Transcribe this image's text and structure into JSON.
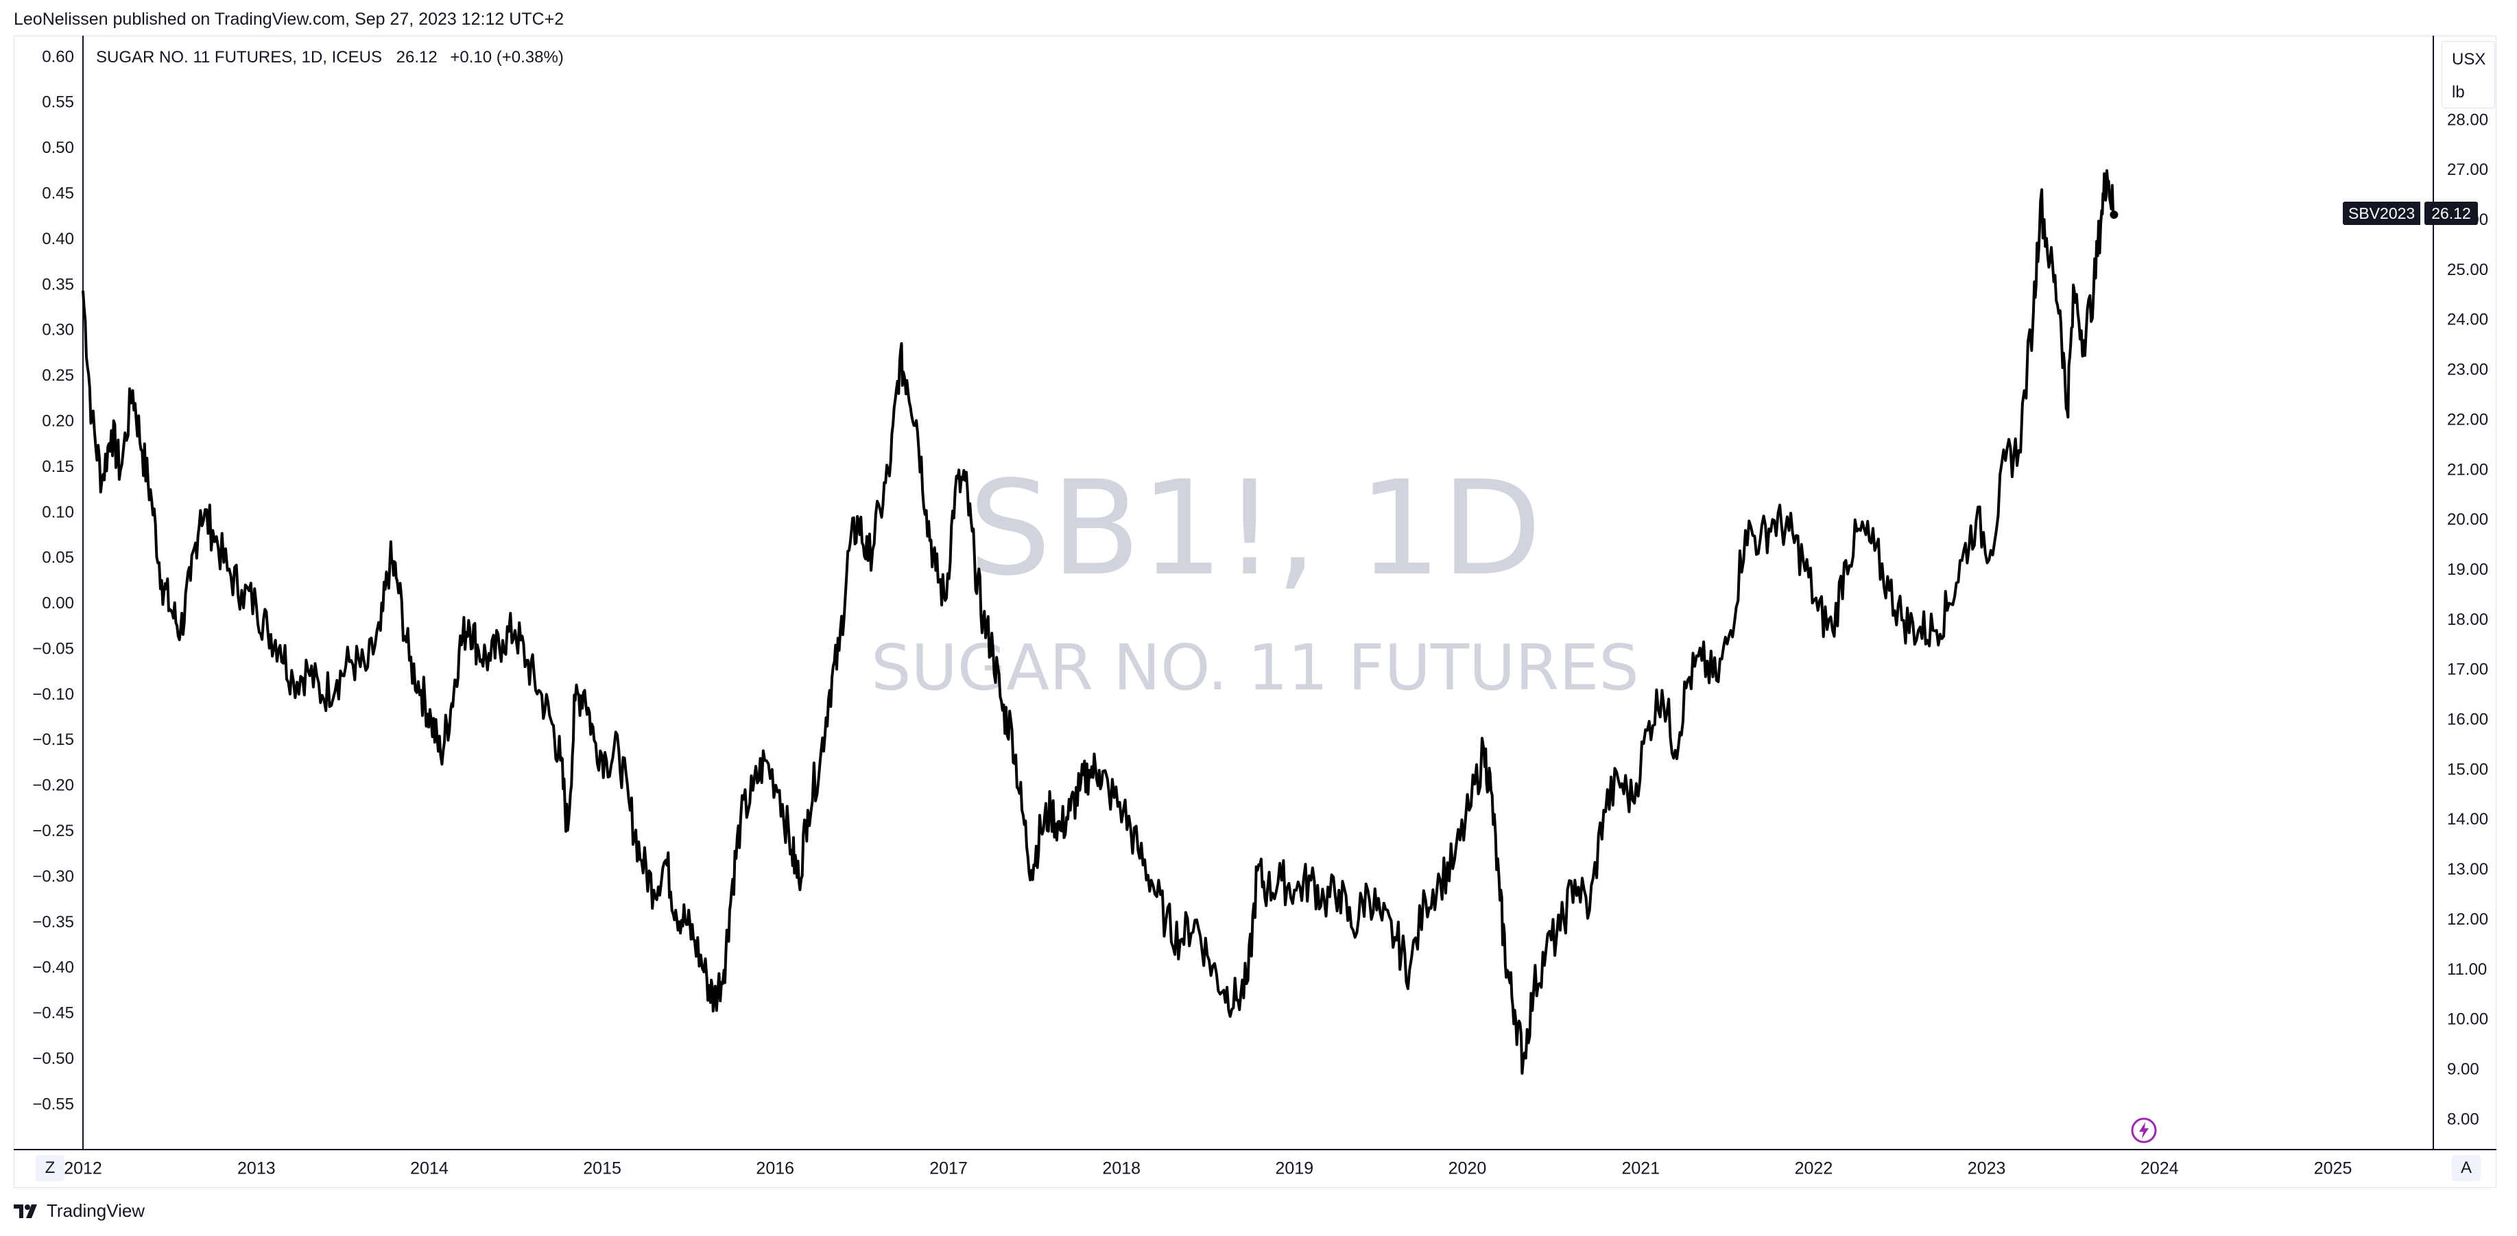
{
  "publish_line": "LeoNelissen published on TradingView.com, Sep 27, 2023 12:12 UTC+2",
  "legend": {
    "symbol": "SUGAR NO. 11 FUTURES, 1D, ICEUS",
    "last": "26.12",
    "change": "+0.10 (+0.38%)"
  },
  "unit": {
    "currency": "USX",
    "per": "lb"
  },
  "last_tag": {
    "symbol": "SBV2023",
    "price": "26.12"
  },
  "watermark": {
    "main": "SB1!, 1D",
    "sub": "SUGAR NO. 11 FUTURES"
  },
  "buttons": {
    "zoom": "Z",
    "auto": "A"
  },
  "brand": "TradingView",
  "icons": [
    "bolt-icon",
    "tradingview-logo-icon"
  ],
  "colors": {
    "line": "#000000",
    "text": "#131722",
    "grid_border": "#e0e3eb",
    "watermark": "#d1d4dc",
    "bolt": "#9c27b0"
  },
  "chart_data": {
    "type": "line",
    "title": "",
    "series": [
      {
        "name": "SB1!",
        "points": [
          [
            "2012-01-01",
            24.6
          ],
          [
            "2012-01-20",
            22.0
          ],
          [
            "2012-02-10",
            20.8
          ],
          [
            "2012-03-01",
            21.8
          ],
          [
            "2012-03-20",
            21.0
          ],
          [
            "2012-04-15",
            22.6
          ],
          [
            "2012-05-05",
            21.4
          ],
          [
            "2012-05-25",
            20.4
          ],
          [
            "2012-06-15",
            18.8
          ],
          [
            "2012-07-05",
            18.2
          ],
          [
            "2012-07-25",
            17.8
          ],
          [
            "2012-08-15",
            18.8
          ],
          [
            "2012-09-05",
            20.2
          ],
          [
            "2012-10-01",
            19.8
          ],
          [
            "2012-11-01",
            19.0
          ],
          [
            "2012-12-01",
            18.6
          ],
          [
            "2013-01-01",
            18.3
          ],
          [
            "2013-01-25",
            17.8
          ],
          [
            "2013-02-20",
            17.5
          ],
          [
            "2013-03-20",
            16.8
          ],
          [
            "2013-04-20",
            17.0
          ],
          [
            "2013-05-20",
            16.5
          ],
          [
            "2013-06-20",
            16.8
          ],
          [
            "2013-07-20",
            17.2
          ],
          [
            "2013-08-20",
            17.0
          ],
          [
            "2013-09-20",
            17.8
          ],
          [
            "2013-10-10",
            19.2
          ],
          [
            "2013-10-25",
            18.8
          ],
          [
            "2013-11-20",
            17.2
          ],
          [
            "2013-12-15",
            16.6
          ],
          [
            "2014-01-05",
            16.0
          ],
          [
            "2014-01-25",
            15.3
          ],
          [
            "2014-02-15",
            16.2
          ],
          [
            "2014-03-05",
            17.4
          ],
          [
            "2014-03-25",
            18.0
          ],
          [
            "2014-04-15",
            17.4
          ],
          [
            "2014-05-10",
            17.2
          ],
          [
            "2014-06-05",
            17.6
          ],
          [
            "2014-07-01",
            17.8
          ],
          [
            "2014-07-25",
            17.2
          ],
          [
            "2014-08-20",
            16.6
          ],
          [
            "2014-09-15",
            16.0
          ],
          [
            "2014-10-05",
            15.2
          ],
          [
            "2014-10-20",
            13.8
          ],
          [
            "2014-11-05",
            16.4
          ],
          [
            "2014-11-25",
            16.6
          ],
          [
            "2014-12-15",
            15.6
          ],
          [
            "2015-01-10",
            15.2
          ],
          [
            "2015-02-05",
            15.4
          ],
          [
            "2015-03-01",
            14.2
          ],
          [
            "2015-03-25",
            13.2
          ],
          [
            "2015-04-20",
            12.6
          ],
          [
            "2015-05-15",
            13.2
          ],
          [
            "2015-06-05",
            12.2
          ],
          [
            "2015-06-25",
            12.0
          ],
          [
            "2015-07-15",
            11.6
          ],
          [
            "2015-08-10",
            10.8
          ],
          [
            "2015-08-25",
            10.4
          ],
          [
            "2015-09-15",
            11.0
          ],
          [
            "2015-10-01",
            12.6
          ],
          [
            "2015-10-20",
            14.0
          ],
          [
            "2015-11-15",
            14.6
          ],
          [
            "2015-12-10",
            15.2
          ],
          [
            "2016-01-10",
            14.6
          ],
          [
            "2016-02-05",
            13.4
          ],
          [
            "2016-02-20",
            12.8
          ],
          [
            "2016-03-10",
            14.2
          ],
          [
            "2016-04-05",
            15.2
          ],
          [
            "2016-04-25",
            16.6
          ],
          [
            "2016-05-15",
            17.4
          ],
          [
            "2016-06-05",
            19.4
          ],
          [
            "2016-06-25",
            20.0
          ],
          [
            "2016-07-15",
            19.2
          ],
          [
            "2016-08-10",
            20.2
          ],
          [
            "2016-09-01",
            21.2
          ],
          [
            "2016-09-20",
            23.2
          ],
          [
            "2016-10-05",
            22.8
          ],
          [
            "2016-10-25",
            22.0
          ],
          [
            "2016-11-15",
            20.2
          ],
          [
            "2016-12-05",
            19.0
          ],
          [
            "2016-12-25",
            18.4
          ],
          [
            "2017-01-15",
            20.6
          ],
          [
            "2017-02-05",
            20.8
          ],
          [
            "2017-02-25",
            19.2
          ],
          [
            "2017-03-15",
            18.0
          ],
          [
            "2017-04-05",
            17.4
          ],
          [
            "2017-04-25",
            16.2
          ],
          [
            "2017-05-15",
            15.8
          ],
          [
            "2017-06-05",
            14.2
          ],
          [
            "2017-06-25",
            13.0
          ],
          [
            "2017-07-15",
            13.8
          ],
          [
            "2017-08-05",
            14.2
          ],
          [
            "2017-08-25",
            13.8
          ],
          [
            "2017-09-15",
            14.2
          ],
          [
            "2017-10-05",
            14.6
          ],
          [
            "2017-10-25",
            15.0
          ],
          [
            "2017-11-15",
            15.0
          ],
          [
            "2017-12-05",
            14.6
          ],
          [
            "2018-01-05",
            14.2
          ],
          [
            "2018-02-05",
            13.4
          ],
          [
            "2018-03-05",
            12.8
          ],
          [
            "2018-04-05",
            12.0
          ],
          [
            "2018-05-05",
            11.6
          ],
          [
            "2018-06-05",
            12.0
          ],
          [
            "2018-07-05",
            11.2
          ],
          [
            "2018-08-05",
            10.6
          ],
          [
            "2018-09-01",
            10.4
          ],
          [
            "2018-09-25",
            10.8
          ],
          [
            "2018-10-15",
            13.0
          ],
          [
            "2018-11-05",
            12.6
          ],
          [
            "2018-12-05",
            12.8
          ],
          [
            "2019-01-05",
            12.6
          ],
          [
            "2019-02-05",
            12.8
          ],
          [
            "2019-03-05",
            12.4
          ],
          [
            "2019-04-05",
            12.6
          ],
          [
            "2019-05-05",
            11.8
          ],
          [
            "2019-06-05",
            12.6
          ],
          [
            "2019-07-05",
            12.0
          ],
          [
            "2019-08-05",
            11.6
          ],
          [
            "2019-09-01",
            11.0
          ],
          [
            "2019-10-05",
            12.4
          ],
          [
            "2019-11-05",
            12.8
          ],
          [
            "2019-12-05",
            13.2
          ],
          [
            "2020-01-05",
            14.2
          ],
          [
            "2020-02-05",
            15.4
          ],
          [
            "2020-02-20",
            14.6
          ],
          [
            "2020-03-10",
            12.4
          ],
          [
            "2020-03-25",
            11.0
          ],
          [
            "2020-04-10",
            10.2
          ],
          [
            "2020-04-28",
            9.2
          ],
          [
            "2020-05-20",
            10.6
          ],
          [
            "2020-06-15",
            11.4
          ],
          [
            "2020-07-15",
            11.8
          ],
          [
            "2020-08-15",
            12.8
          ],
          [
            "2020-09-15",
            12.2
          ],
          [
            "2020-10-15",
            14.2
          ],
          [
            "2020-11-15",
            14.8
          ],
          [
            "2020-12-15",
            14.4
          ],
          [
            "2021-01-15",
            15.8
          ],
          [
            "2021-02-15",
            16.6
          ],
          [
            "2021-03-15",
            15.4
          ],
          [
            "2021-04-10",
            16.8
          ],
          [
            "2021-05-10",
            17.2
          ],
          [
            "2021-06-10",
            16.8
          ],
          [
            "2021-07-10",
            17.8
          ],
          [
            "2021-08-10",
            19.8
          ],
          [
            "2021-09-10",
            19.6
          ],
          [
            "2021-10-10",
            20.0
          ],
          [
            "2021-11-10",
            19.8
          ],
          [
            "2021-12-10",
            19.2
          ],
          [
            "2022-01-10",
            18.2
          ],
          [
            "2022-02-10",
            17.8
          ],
          [
            "2022-03-10",
            19.2
          ],
          [
            "2022-04-10",
            19.8
          ],
          [
            "2022-05-10",
            19.4
          ],
          [
            "2022-06-10",
            18.6
          ],
          [
            "2022-07-10",
            18.0
          ],
          [
            "2022-08-10",
            17.8
          ],
          [
            "2022-09-10",
            17.8
          ],
          [
            "2022-10-10",
            18.2
          ],
          [
            "2022-11-10",
            19.2
          ],
          [
            "2022-12-10",
            20.0
          ],
          [
            "2023-01-10",
            19.4
          ],
          [
            "2023-02-10",
            21.2
          ],
          [
            "2023-03-10",
            21.4
          ],
          [
            "2023-04-10",
            24.2
          ],
          [
            "2023-04-25",
            26.4
          ],
          [
            "2023-05-15",
            25.2
          ],
          [
            "2023-06-05",
            24.2
          ],
          [
            "2023-06-20",
            22.2
          ],
          [
            "2023-07-05",
            24.6
          ],
          [
            "2023-07-25",
            23.6
          ],
          [
            "2023-08-15",
            24.6
          ],
          [
            "2023-09-01",
            26.2
          ],
          [
            "2023-09-12",
            27.0
          ],
          [
            "2023-09-27",
            26.12
          ]
        ]
      }
    ],
    "x_axis": {
      "ticks": [
        "2012",
        "2013",
        "2014",
        "2015",
        "2016",
        "2017",
        "2018",
        "2019",
        "2020",
        "2021",
        "2022",
        "2023",
        "2024",
        "2025"
      ],
      "range": [
        "2012-01-01",
        "2025-08-01"
      ]
    },
    "y_right": {
      "ticks": [
        "28.00",
        "27.00",
        "26.00",
        "25.00",
        "24.00",
        "23.00",
        "22.00",
        "21.00",
        "20.00",
        "19.00",
        "18.00",
        "17.00",
        "16.00",
        "15.00",
        "14.00",
        "13.00",
        "12.00",
        "11.00",
        "10.00",
        "9.00",
        "8.00"
      ],
      "range": [
        8,
        28
      ]
    },
    "y_left": {
      "ticks": [
        "0.60",
        "0.55",
        "0.50",
        "0.45",
        "0.40",
        "0.35",
        "0.30",
        "0.25",
        "0.20",
        "0.15",
        "0.10",
        "0.05",
        "0.00",
        "−0.05",
        "−0.10",
        "−0.15",
        "−0.20",
        "−0.25",
        "−0.30",
        "−0.35",
        "−0.40",
        "−0.45",
        "−0.50",
        "−0.55"
      ],
      "range": [
        -0.55,
        0.6
      ]
    },
    "grid": false,
    "last_value": 26.12
  }
}
